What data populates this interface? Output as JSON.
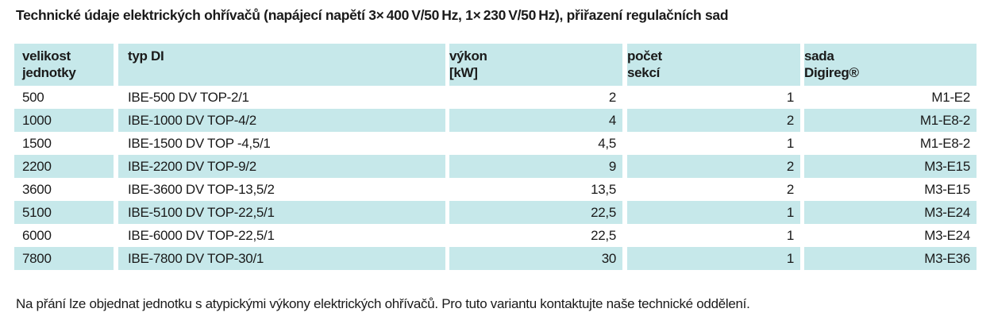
{
  "title": "Technické údaje elektrických ohřívačů (napájecí napětí 3× 400 V/50 Hz, 1× 230 V/50 Hz), přiřazení regulačních sad",
  "colors": {
    "row_highlight": "#c6e8ea",
    "background": "#ffffff",
    "text": "#1a1a1a"
  },
  "table": {
    "headers": [
      {
        "lines": [
          "velikost",
          "jednotky"
        ]
      },
      {
        "lines": [
          "typ DI"
        ]
      },
      {
        "lines": [
          "výkon",
          "[kW]"
        ]
      },
      {
        "lines": [
          "počet",
          "sekcí"
        ]
      },
      {
        "lines": [
          "sada",
          "Digireg®"
        ]
      }
    ],
    "rows": [
      [
        "500",
        "IBE-500 DV TOP-2/1",
        "2",
        "1",
        "M1-E2"
      ],
      [
        "1000",
        "IBE-1000 DV TOP-4/2",
        "4",
        "2",
        "M1-E8-2"
      ],
      [
        "1500",
        "IBE-1500 DV TOP -4,5/1",
        "4,5",
        "1",
        "M1-E8-2"
      ],
      [
        "2200",
        "IBE-2200 DV TOP-9/2",
        "9",
        "2",
        "M3-E15"
      ],
      [
        "3600",
        "IBE-3600 DV TOP-13,5/2",
        "13,5",
        "2",
        "M3-E15"
      ],
      [
        "5100",
        "IBE-5100 DV TOP-22,5/1",
        "22,5",
        "1",
        "M3-E24"
      ],
      [
        "6000",
        "IBE-6000 DV TOP-22,5/1",
        "22,5",
        "1",
        "M3-E24"
      ],
      [
        "7800",
        "IBE-7800 DV TOP-30/1",
        "30",
        "1",
        "M3-E36"
      ]
    ]
  },
  "footer": "Na přání lze objednat jednotku s atypickými výkony elektrických ohřívačů. Pro tuto variantu kontaktujte naše technické oddělení."
}
